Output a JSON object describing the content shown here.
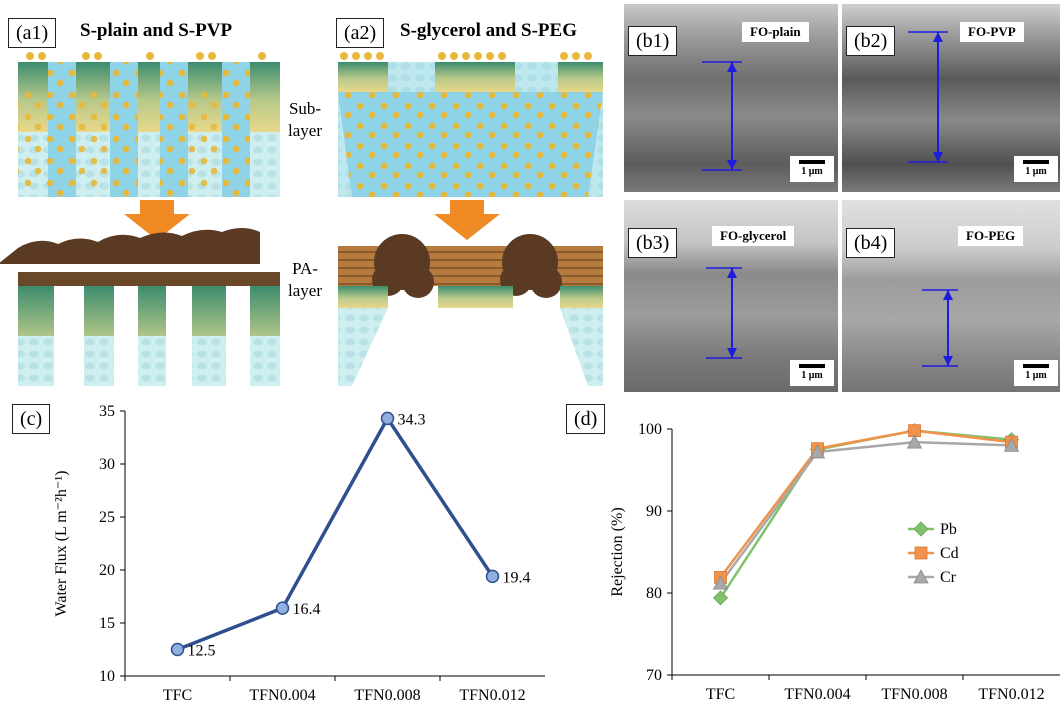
{
  "panels": {
    "a1": {
      "label": "(a1)",
      "title": "S-plain and S-PVP"
    },
    "a2": {
      "label": "(a2)",
      "title": "S-glycerol and S-PEG"
    },
    "sublayer": {
      "line1": "Sub-",
      "line2": "layer"
    },
    "palayer": {
      "line1": "PA-",
      "line2": "layer"
    },
    "b1": {
      "label": "(b1)",
      "tag": "FO-plain",
      "scale": "1 μm"
    },
    "b2": {
      "label": "(b2)",
      "tag": "FO-PVP",
      "scale": "1 μm"
    },
    "b3": {
      "label": "(b3)",
      "tag": "FO-glycerol",
      "scale": "1 μm"
    },
    "b4": {
      "label": "(b4)",
      "tag": "FO-PEG",
      "scale": "1 μm"
    },
    "c": {
      "label": "(c)"
    },
    "d": {
      "label": "(d)"
    }
  },
  "colors": {
    "diagram_blue": "#8fd3e6",
    "diagram_gradient_green": "#3d8c6e",
    "diagram_gradient_yellow": "#e8d88a",
    "particle": "#e6b93a",
    "arrow_orange": "#f08a24",
    "pa_brown": "#5a3a22",
    "sem_arrow": "#1d1de0",
    "flux_line": "#2f4f8f",
    "flux_marker": "#8fb0e0",
    "pb": "#7fc26a",
    "cd": "#f0924a",
    "cr": "#a8a8a8"
  },
  "chart_data": [
    {
      "type": "line",
      "categories": [
        "TFC",
        "TFN0.004",
        "TFN0.008",
        "TFN0.012"
      ],
      "values": [
        12.5,
        16.4,
        34.3,
        19.4
      ],
      "data_labels": [
        "12.5",
        "16.4",
        "34.3",
        "19.4"
      ],
      "ylabel": "Water Flux (L m⁻²h⁻¹)",
      "ylim": [
        10,
        35
      ],
      "yticks": [
        "10",
        "15",
        "20",
        "25",
        "30",
        "35"
      ],
      "grid": false
    },
    {
      "type": "line",
      "categories": [
        "TFC",
        "TFN0.004",
        "TFN0.008",
        "TFN0.012"
      ],
      "series": [
        {
          "name": "Pb",
          "values": [
            79.4,
            97.5,
            99.8,
            98.7
          ]
        },
        {
          "name": "Cd",
          "values": [
            81.9,
            97.6,
            99.8,
            98.4
          ]
        },
        {
          "name": "Cr",
          "values": [
            81.2,
            97.2,
            98.4,
            98.0
          ]
        }
      ],
      "ylabel": "Rejection (%)",
      "ylim": [
        70,
        100
      ],
      "yticks": [
        "70",
        "80",
        "90",
        "100"
      ],
      "legend": "right",
      "grid": false
    }
  ]
}
